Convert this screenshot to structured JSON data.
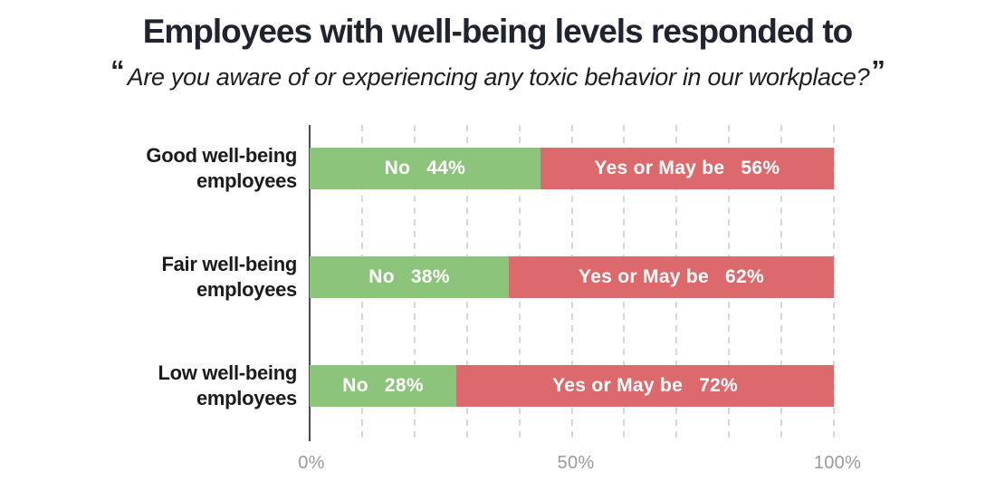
{
  "title": "Employees with well-being levels responded to",
  "subtitle": {
    "open_quote": "“",
    "text": "Are you aware of or experiencing any toxic behavior in our workplace?",
    "close_quote": "”"
  },
  "rows": [
    {
      "label": "Good well-being\nemployees",
      "no_label": "No",
      "no_value": "44%",
      "no_pct": 44,
      "yes_label": "Yes or May be",
      "yes_value": "56%",
      "yes_pct": 56
    },
    {
      "label": "Fair well-being\nemployees",
      "no_label": "No",
      "no_value": "38%",
      "no_pct": 38,
      "yes_label": "Yes or May be",
      "yes_value": "62%",
      "yes_pct": 62
    },
    {
      "label": "Low well-being\nemployees",
      "no_label": "No",
      "no_value": "28%",
      "no_pct": 28,
      "yes_label": "Yes or May be",
      "yes_value": "72%",
      "yes_pct": 72
    }
  ],
  "x_axis": {
    "ticks": [
      {
        "label": "0%",
        "pct": 0
      },
      {
        "label": "50%",
        "pct": 50
      },
      {
        "label": "100%",
        "pct": 100
      }
    ]
  },
  "colors": {
    "no_segment": "#8dc47c",
    "yes_segment": "#dc6a6c",
    "title_text": "#20242f",
    "category_text": "#1b1b1b",
    "tick_text": "#9a9a9a",
    "axis_line": "#4b4b4b",
    "gridline": "#d8d8d8",
    "bar_text": "#ffffff",
    "background": "#ffffff"
  },
  "chart_data": {
    "type": "bar",
    "orientation": "horizontal-stacked",
    "title": "Employees with well-being levels responded to",
    "subtitle": "“Are you aware of or experiencing any toxic behavior in our workplace?”",
    "categories": [
      "Good well-being employees",
      "Fair well-being employees",
      "Low well-being employees"
    ],
    "series": [
      {
        "name": "No",
        "values": [
          44,
          38,
          28
        ],
        "color": "#8dc47c"
      },
      {
        "name": "Yes or May be",
        "values": [
          56,
          62,
          72
        ],
        "color": "#dc6a6c"
      }
    ],
    "value_unit": "%",
    "xlabel": "",
    "ylabel": "",
    "xlim": [
      0,
      100
    ],
    "x_ticks": [
      "0%",
      "50%",
      "100%"
    ],
    "grid": "vertical dashed lines every 10%",
    "legend": "none (series labels printed inside bar segments)"
  }
}
